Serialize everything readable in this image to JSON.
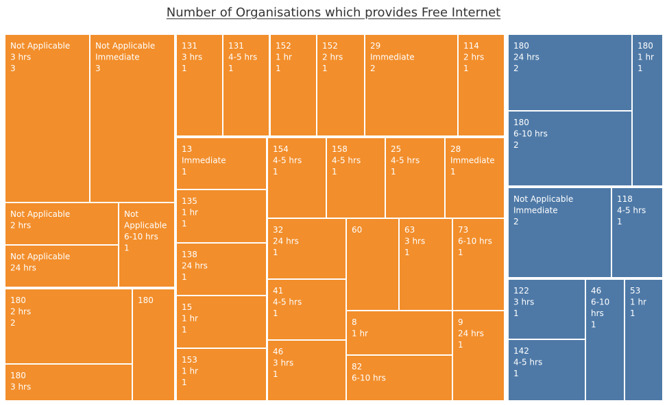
{
  "colors": {
    "orange": "#f28e2b",
    "blue": "#4e79a7",
    "label": "#ffffff"
  },
  "chart_data": {
    "type": "treemap",
    "title": "Number of Organisations which provides Free Internet",
    "cells": [
      {
        "lines": [
          "Not Applicable",
          "3 hrs",
          "3"
        ],
        "color": "orange",
        "value": 3
      },
      {
        "lines": [
          "Not Applicable",
          "Immediate",
          "3"
        ],
        "color": "orange",
        "value": 3
      },
      {
        "lines": [
          "Not Applicable",
          "2 hrs"
        ],
        "color": "orange"
      },
      {
        "lines": [
          "Not Applicable",
          "24 hrs"
        ],
        "color": "orange"
      },
      {
        "lines": [
          "Not",
          "Applicable",
          "6-10 hrs",
          "1"
        ],
        "color": "orange",
        "value": 1
      },
      {
        "lines": [
          "180",
          "2 hrs",
          "2"
        ],
        "color": "orange",
        "value": 2
      },
      {
        "lines": [
          "180",
          "3 hrs"
        ],
        "color": "orange"
      },
      {
        "lines": [
          "180"
        ],
        "color": "orange"
      },
      {
        "lines": [
          "131",
          "3 hrs",
          "1"
        ],
        "color": "orange",
        "value": 1
      },
      {
        "lines": [
          "131",
          "4-5 hrs",
          "1"
        ],
        "color": "orange",
        "value": 1
      },
      {
        "lines": [
          "152",
          "1 hr",
          "1"
        ],
        "color": "orange",
        "value": 1
      },
      {
        "lines": [
          "152",
          "2 hrs",
          "1"
        ],
        "color": "orange",
        "value": 1
      },
      {
        "lines": [
          "29",
          "Immediate",
          "2"
        ],
        "color": "orange",
        "value": 2
      },
      {
        "lines": [
          "114",
          "2 hrs",
          "1"
        ],
        "color": "orange",
        "value": 1
      },
      {
        "lines": [
          "13",
          "Immediate",
          "1"
        ],
        "color": "orange",
        "value": 1
      },
      {
        "lines": [
          "135",
          "1 hr",
          "1"
        ],
        "color": "orange",
        "value": 1
      },
      {
        "lines": [
          "138",
          "24 hrs",
          "1"
        ],
        "color": "orange",
        "value": 1
      },
      {
        "lines": [
          "15",
          "1 hr",
          "1"
        ],
        "color": "orange",
        "value": 1
      },
      {
        "lines": [
          "153",
          "1 hr",
          "1"
        ],
        "color": "orange",
        "value": 1
      },
      {
        "lines": [
          "154",
          "4-5 hrs",
          "1"
        ],
        "color": "orange",
        "value": 1
      },
      {
        "lines": [
          "158",
          "4-5 hrs",
          "1"
        ],
        "color": "orange",
        "value": 1
      },
      {
        "lines": [
          "25",
          "4-5 hrs",
          "1"
        ],
        "color": "orange",
        "value": 1
      },
      {
        "lines": [
          "28",
          "Immediate",
          "1"
        ],
        "color": "orange",
        "value": 1
      },
      {
        "lines": [
          "32",
          "24 hrs",
          "1"
        ],
        "color": "orange",
        "value": 1
      },
      {
        "lines": [
          "41",
          "4-5 hrs",
          "1"
        ],
        "color": "orange",
        "value": 1
      },
      {
        "lines": [
          "46",
          "3 hrs",
          "1"
        ],
        "color": "orange",
        "value": 1
      },
      {
        "lines": [
          "60"
        ],
        "color": "orange"
      },
      {
        "lines": [
          "63",
          "3 hrs",
          "1"
        ],
        "color": "orange",
        "value": 1
      },
      {
        "lines": [
          "73",
          "6-10 hrs",
          "1"
        ],
        "color": "orange",
        "value": 1
      },
      {
        "lines": [
          "8",
          "1 hr"
        ],
        "color": "orange"
      },
      {
        "lines": [
          "9",
          "24 hrs",
          "1"
        ],
        "color": "orange",
        "value": 1
      },
      {
        "lines": [
          "82",
          "6-10 hrs"
        ],
        "color": "orange"
      },
      {
        "lines": [
          "180",
          "24 hrs",
          "2"
        ],
        "color": "blue",
        "value": 2
      },
      {
        "lines": [
          "180",
          "6-10 hrs",
          "2"
        ],
        "color": "blue",
        "value": 2
      },
      {
        "lines": [
          "180",
          "1 hr",
          "1"
        ],
        "color": "blue",
        "value": 1
      },
      {
        "lines": [
          "Not Applicable",
          "Immediate",
          "2"
        ],
        "color": "blue",
        "value": 2
      },
      {
        "lines": [
          "118",
          "4-5 hrs",
          "1"
        ],
        "color": "blue",
        "value": 1
      },
      {
        "lines": [
          "122",
          "3 hrs",
          "1"
        ],
        "color": "blue",
        "value": 1
      },
      {
        "lines": [
          "142",
          "4-5 hrs",
          "1"
        ],
        "color": "blue",
        "value": 1
      },
      {
        "lines": [
          "46",
          "6-10",
          "hrs",
          "1"
        ],
        "color": "blue",
        "value": 1
      },
      {
        "lines": [
          "53",
          "1 hr",
          "1"
        ],
        "color": "blue",
        "value": 1
      }
    ]
  }
}
